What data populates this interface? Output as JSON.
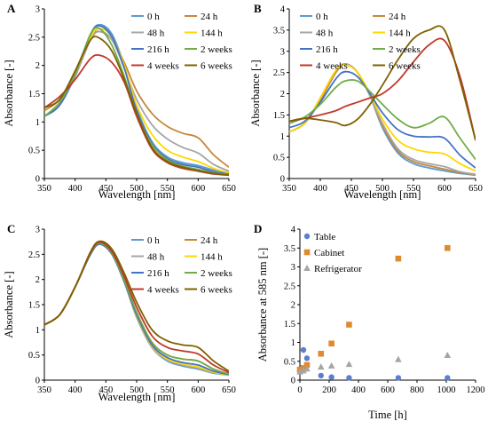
{
  "chart_data": [
    {
      "panel": "A",
      "type": "line",
      "xlabel": "Wavelength [nm]",
      "ylabel": "Absorbance [-]",
      "xlim": [
        350,
        650
      ],
      "ylim": [
        0,
        3
      ],
      "xticks": [
        350,
        400,
        450,
        500,
        550,
        600,
        650
      ],
      "yticks": [
        0,
        0.5,
        1,
        1.5,
        2,
        2.5,
        3
      ],
      "ytick_labels": [
        "0",
        "0.5",
        "1",
        "1.5",
        "2",
        "2.5",
        "3"
      ],
      "legend": "top-right",
      "series": [
        {
          "name": "0 h",
          "color": "#5b9bd5",
          "x": [
            350,
            375,
            400,
            425,
            440,
            460,
            480,
            500,
            525,
            550,
            575,
            600,
            625,
            650
          ],
          "y": [
            1.1,
            1.3,
            1.85,
            2.55,
            2.72,
            2.55,
            2.0,
            1.25,
            0.65,
            0.38,
            0.28,
            0.23,
            0.15,
            0.1
          ]
        },
        {
          "name": "24 h",
          "color": "#c5883a",
          "x": [
            350,
            375,
            400,
            425,
            440,
            460,
            480,
            500,
            525,
            550,
            575,
            600,
            625,
            650
          ],
          "y": [
            1.2,
            1.4,
            1.9,
            2.5,
            2.6,
            2.45,
            2.05,
            1.55,
            1.15,
            0.92,
            0.8,
            0.72,
            0.42,
            0.2
          ]
        },
        {
          "name": "48 h",
          "color": "#a5a5a5",
          "x": [
            350,
            375,
            400,
            425,
            440,
            460,
            480,
            500,
            525,
            550,
            575,
            600,
            625,
            650
          ],
          "y": [
            1.1,
            1.3,
            1.8,
            2.45,
            2.6,
            2.45,
            1.95,
            1.4,
            0.95,
            0.7,
            0.55,
            0.45,
            0.25,
            0.13
          ]
        },
        {
          "name": "144 h",
          "color": "#ffd700",
          "x": [
            350,
            375,
            400,
            425,
            440,
            460,
            480,
            500,
            525,
            550,
            575,
            600,
            625,
            650
          ],
          "y": [
            1.1,
            1.3,
            1.85,
            2.5,
            2.65,
            2.5,
            2.0,
            1.3,
            0.78,
            0.5,
            0.38,
            0.3,
            0.18,
            0.1
          ]
        },
        {
          "name": "216 h",
          "color": "#4472c4",
          "x": [
            350,
            375,
            400,
            425,
            440,
            460,
            480,
            500,
            525,
            550,
            575,
            600,
            625,
            650
          ],
          "y": [
            1.1,
            1.3,
            1.85,
            2.55,
            2.7,
            2.5,
            1.95,
            1.2,
            0.62,
            0.35,
            0.25,
            0.2,
            0.12,
            0.08
          ]
        },
        {
          "name": "2 weeks",
          "color": "#70ad47",
          "x": [
            350,
            375,
            400,
            425,
            440,
            460,
            480,
            500,
            525,
            550,
            575,
            600,
            625,
            650
          ],
          "y": [
            1.1,
            1.35,
            1.85,
            2.55,
            2.65,
            2.35,
            1.8,
            1.15,
            0.6,
            0.33,
            0.22,
            0.16,
            0.1,
            0.07
          ]
        },
        {
          "name": "4 weeks",
          "color": "#c0392b",
          "x": [
            350,
            375,
            400,
            425,
            440,
            460,
            480,
            500,
            525,
            550,
            575,
            600,
            625,
            650
          ],
          "y": [
            1.25,
            1.45,
            1.75,
            2.12,
            2.18,
            2.05,
            1.7,
            1.1,
            0.52,
            0.28,
            0.18,
            0.13,
            0.08,
            0.06
          ]
        },
        {
          "name": "6 weeks",
          "color": "#7f6000",
          "x": [
            350,
            375,
            400,
            425,
            440,
            460,
            480,
            500,
            525,
            550,
            575,
            600,
            625,
            650
          ],
          "y": [
            1.25,
            1.4,
            1.9,
            2.45,
            2.48,
            2.25,
            1.75,
            1.15,
            0.55,
            0.3,
            0.2,
            0.14,
            0.09,
            0.06
          ]
        }
      ]
    },
    {
      "panel": "B",
      "type": "line",
      "xlabel": "Wavelength [nm]",
      "ylabel": "Absorbance [-]",
      "xlim": [
        350,
        650
      ],
      "ylim": [
        0,
        4
      ],
      "xticks": [
        350,
        400,
        450,
        500,
        550,
        600,
        650
      ],
      "yticks": [
        0,
        0.5,
        1,
        1.5,
        2,
        2.5,
        3,
        3.5,
        4
      ],
      "ytick_labels": [
        "0",
        "0.5",
        "1",
        "1.5",
        "2",
        "2.5",
        "3",
        "3.5",
        "4"
      ],
      "legend": "top-right",
      "series": [
        {
          "name": "0 h",
          "color": "#5b9bd5",
          "x": [
            350,
            375,
            400,
            425,
            440,
            460,
            480,
            500,
            525,
            550,
            575,
            600,
            625,
            650
          ],
          "y": [
            1.1,
            1.3,
            1.85,
            2.5,
            2.7,
            2.5,
            1.95,
            1.2,
            0.6,
            0.35,
            0.25,
            0.18,
            0.12,
            0.08
          ]
        },
        {
          "name": "24 h",
          "color": "#c5883a",
          "x": [
            350,
            375,
            400,
            425,
            440,
            460,
            480,
            500,
            525,
            550,
            575,
            600,
            625,
            650
          ],
          "y": [
            1.1,
            1.3,
            1.85,
            2.5,
            2.7,
            2.5,
            1.95,
            1.25,
            0.65,
            0.4,
            0.3,
            0.22,
            0.14,
            0.09
          ]
        },
        {
          "name": "48 h",
          "color": "#a5a5a5",
          "x": [
            350,
            375,
            400,
            425,
            440,
            460,
            480,
            500,
            525,
            550,
            575,
            600,
            625,
            650
          ],
          "y": [
            1.1,
            1.3,
            1.9,
            2.55,
            2.7,
            2.5,
            1.95,
            1.3,
            0.7,
            0.45,
            0.35,
            0.28,
            0.16,
            0.1
          ]
        },
        {
          "name": "144 h",
          "color": "#ffd700",
          "x": [
            350,
            375,
            400,
            425,
            440,
            460,
            480,
            500,
            525,
            550,
            575,
            600,
            625,
            650
          ],
          "y": [
            1.1,
            1.3,
            1.9,
            2.55,
            2.68,
            2.5,
            2.0,
            1.4,
            0.9,
            0.7,
            0.62,
            0.58,
            0.35,
            0.18
          ]
        },
        {
          "name": "216 h",
          "color": "#4472c4",
          "x": [
            350,
            375,
            400,
            425,
            440,
            460,
            480,
            500,
            525,
            550,
            575,
            600,
            625,
            650
          ],
          "y": [
            1.2,
            1.35,
            1.8,
            2.35,
            2.52,
            2.4,
            2.0,
            1.55,
            1.15,
            1.0,
            0.98,
            0.95,
            0.55,
            0.25
          ]
        },
        {
          "name": "2 weeks",
          "color": "#70ad47",
          "x": [
            350,
            375,
            400,
            425,
            440,
            460,
            480,
            500,
            525,
            550,
            575,
            600,
            625,
            650
          ],
          "y": [
            1.3,
            1.45,
            1.75,
            2.15,
            2.3,
            2.3,
            2.05,
            1.75,
            1.4,
            1.2,
            1.3,
            1.45,
            0.95,
            0.45
          ]
        },
        {
          "name": "4 weeks",
          "color": "#c0392b",
          "x": [
            350,
            375,
            400,
            425,
            440,
            460,
            480,
            500,
            525,
            550,
            575,
            600,
            625,
            650
          ],
          "y": [
            1.35,
            1.42,
            1.5,
            1.6,
            1.7,
            1.8,
            1.9,
            2.0,
            2.3,
            2.75,
            3.15,
            3.25,
            2.4,
            0.9
          ]
        },
        {
          "name": "6 weeks",
          "color": "#7f6000",
          "x": [
            350,
            375,
            400,
            425,
            440,
            460,
            480,
            500,
            525,
            550,
            575,
            600,
            625,
            650
          ],
          "y": [
            1.35,
            1.42,
            1.38,
            1.32,
            1.25,
            1.4,
            1.75,
            2.2,
            2.8,
            3.3,
            3.5,
            3.5,
            2.3,
            0.9
          ]
        }
      ]
    },
    {
      "panel": "C",
      "type": "line",
      "xlabel": "Wavelength [nm]",
      "ylabel": "Absorbance [-]",
      "xlim": [
        350,
        650
      ],
      "ylim": [
        0,
        3
      ],
      "xticks": [
        350,
        400,
        450,
        500,
        550,
        600,
        650
      ],
      "yticks": [
        0,
        0.5,
        1,
        1.5,
        2,
        2.5,
        3
      ],
      "ytick_labels": [
        "0",
        "0.5",
        "1",
        "1.5",
        "2",
        "2.5",
        "3"
      ],
      "legend": "top-right",
      "series": [
        {
          "name": "0 h",
          "color": "#5b9bd5",
          "x": [
            350,
            375,
            400,
            425,
            440,
            460,
            480,
            500,
            525,
            550,
            575,
            600,
            625,
            650
          ],
          "y": [
            1.1,
            1.3,
            1.85,
            2.5,
            2.7,
            2.5,
            1.95,
            1.25,
            0.65,
            0.38,
            0.28,
            0.22,
            0.14,
            0.1
          ]
        },
        {
          "name": "24 h",
          "color": "#c5883a",
          "x": [
            350,
            375,
            400,
            425,
            440,
            460,
            480,
            500,
            525,
            550,
            575,
            600,
            625,
            650
          ],
          "y": [
            1.1,
            1.3,
            1.85,
            2.52,
            2.72,
            2.52,
            2.0,
            1.32,
            0.75,
            0.5,
            0.42,
            0.38,
            0.22,
            0.12
          ]
        },
        {
          "name": "48 h",
          "color": "#a5a5a5",
          "x": [
            350,
            375,
            400,
            425,
            440,
            460,
            480,
            500,
            525,
            550,
            575,
            600,
            625,
            650
          ],
          "y": [
            1.1,
            1.3,
            1.85,
            2.5,
            2.7,
            2.5,
            1.95,
            1.25,
            0.65,
            0.4,
            0.3,
            0.24,
            0.15,
            0.1
          ]
        },
        {
          "name": "144 h",
          "color": "#ffd700",
          "x": [
            350,
            375,
            400,
            425,
            440,
            460,
            480,
            500,
            525,
            550,
            575,
            600,
            625,
            650
          ],
          "y": [
            1.1,
            1.3,
            1.85,
            2.5,
            2.7,
            2.5,
            1.95,
            1.28,
            0.68,
            0.42,
            0.32,
            0.26,
            0.16,
            0.1
          ]
        },
        {
          "name": "216 h",
          "color": "#4472c4",
          "x": [
            350,
            375,
            400,
            425,
            440,
            460,
            480,
            500,
            525,
            550,
            575,
            600,
            625,
            650
          ],
          "y": [
            1.1,
            1.3,
            1.85,
            2.5,
            2.7,
            2.5,
            1.95,
            1.3,
            0.7,
            0.45,
            0.35,
            0.3,
            0.18,
            0.11
          ]
        },
        {
          "name": "2 weeks",
          "color": "#70ad47",
          "x": [
            350,
            375,
            400,
            425,
            440,
            460,
            480,
            500,
            525,
            550,
            575,
            600,
            625,
            650
          ],
          "y": [
            1.1,
            1.3,
            1.85,
            2.52,
            2.72,
            2.52,
            1.98,
            1.35,
            0.75,
            0.5,
            0.42,
            0.38,
            0.22,
            0.12
          ]
        },
        {
          "name": "4 weeks",
          "color": "#c0392b",
          "x": [
            350,
            375,
            400,
            425,
            440,
            460,
            480,
            500,
            525,
            550,
            575,
            600,
            625,
            650
          ],
          "y": [
            1.1,
            1.3,
            1.85,
            2.53,
            2.74,
            2.55,
            2.05,
            1.45,
            0.88,
            0.65,
            0.58,
            0.52,
            0.3,
            0.15
          ]
        },
        {
          "name": "6 weeks",
          "color": "#7f6000",
          "x": [
            350,
            375,
            400,
            425,
            440,
            460,
            480,
            500,
            525,
            550,
            575,
            600,
            625,
            650
          ],
          "y": [
            1.1,
            1.3,
            1.85,
            2.55,
            2.76,
            2.6,
            2.12,
            1.55,
            1.0,
            0.78,
            0.7,
            0.65,
            0.38,
            0.18
          ]
        }
      ]
    },
    {
      "panel": "D",
      "type": "scatter",
      "xlabel": "Time [h]",
      "ylabel": "Absorbance at 585 nm [-]",
      "xlim": [
        0,
        1200
      ],
      "ylim": [
        0,
        4
      ],
      "xticks": [
        0,
        200,
        400,
        600,
        800,
        1000,
        1200
      ],
      "yticks": [
        0,
        0.5,
        1,
        1.5,
        2,
        2.5,
        3,
        3.5,
        4
      ],
      "ytick_labels": [
        "0",
        "0.5",
        "1",
        "1.5",
        "2",
        "2.5",
        "3",
        "3.5",
        "4"
      ],
      "legend": "top-left",
      "series": [
        {
          "name": "Table",
          "color": "#5b7fd0",
          "marker": "circle",
          "x": [
            0,
            24,
            48,
            144,
            216,
            336,
            672,
            1008
          ],
          "y": [
            0.24,
            0.8,
            0.58,
            0.12,
            0.08,
            0.06,
            0.06,
            0.06
          ]
        },
        {
          "name": "Cabinet",
          "color": "#e08a30",
          "marker": "square",
          "x": [
            0,
            24,
            48,
            144,
            216,
            336,
            672,
            1008
          ],
          "y": [
            0.28,
            0.32,
            0.4,
            0.7,
            0.97,
            1.47,
            3.22,
            3.5
          ]
        },
        {
          "name": "Refrigerator",
          "color": "#a5a5a5",
          "marker": "triangle",
          "x": [
            0,
            24,
            48,
            144,
            216,
            336,
            672,
            1008
          ],
          "y": [
            0.22,
            0.25,
            0.3,
            0.35,
            0.38,
            0.42,
            0.55,
            0.66
          ]
        }
      ]
    }
  ]
}
